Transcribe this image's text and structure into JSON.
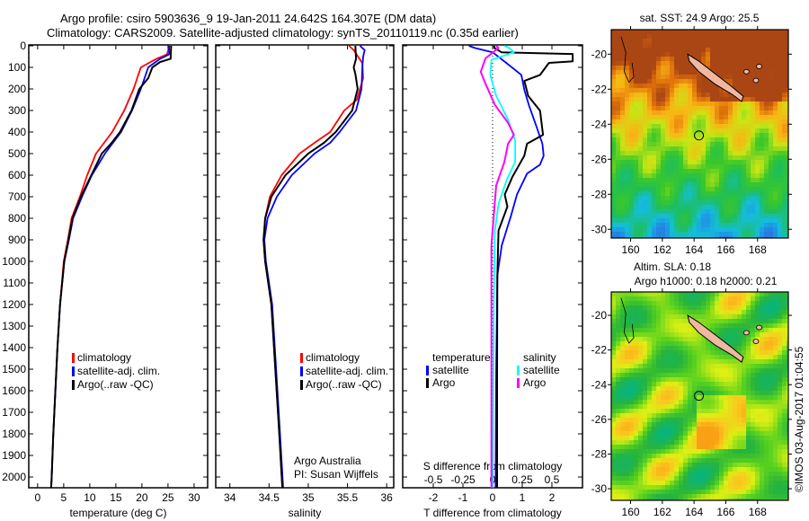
{
  "header": {
    "line1": "Argo profile: csiro 5903636_9 19-Jan-2011 24.642S 164.307E (DM data)",
    "line2": "Climatology: CARS2009. Satellite-adjusted climatology: synTS_20110119.nc (0.35d earlier)"
  },
  "footer": {
    "copyright": "©IMOS 03-Aug-2017 01:04:55"
  },
  "colors": {
    "climatology": "#ff0000",
    "satellite": "#0000ff",
    "argo": "#000000",
    "sal_satellite": "#00ffff",
    "sal_argo": "#ff00ff"
  },
  "chart_data": [
    {
      "type": "line",
      "title": "",
      "xlabel": "temperature (deg C)",
      "ylabel": "",
      "xlim": [
        -1.7,
        32.6
      ],
      "ylim": [
        2050,
        0
      ],
      "xticks": [
        "0",
        "5",
        "10",
        "15",
        "20",
        "25",
        "30"
      ],
      "yticks": [
        "0",
        "100",
        "200",
        "300",
        "400",
        "500",
        "600",
        "700",
        "800",
        "900",
        "1000",
        "1100",
        "1200",
        "1300",
        "1400",
        "1500",
        "1600",
        "1700",
        "1800",
        "1900",
        "2000"
      ],
      "legend": {
        "position": "lower-left",
        "entries": [
          "climatology",
          "satellite-adj. clim.",
          "Argo(..raw -QC)"
        ]
      },
      "series": [
        {
          "name": "climatology",
          "points": [
            [
              0,
              25.3
            ],
            [
              40,
              24.8
            ],
            [
              60,
              22.8
            ],
            [
              100,
              19.8
            ],
            [
              200,
              18.4
            ],
            [
              300,
              16.6
            ],
            [
              400,
              14.3
            ],
            [
              500,
              11.2
            ],
            [
              600,
              9.5
            ],
            [
              700,
              8.1
            ],
            [
              800,
              6.5
            ],
            [
              900,
              5.8
            ],
            [
              1000,
              5.0
            ],
            [
              1200,
              4.3
            ],
            [
              1400,
              3.8
            ],
            [
              1600,
              3.4
            ],
            [
              1800,
              3.0
            ],
            [
              2000,
              2.7
            ],
            [
              2050,
              2.6
            ]
          ]
        },
        {
          "name": "satellite-adj. clim.",
          "points": [
            [
              0,
              25.2
            ],
            [
              40,
              25.2
            ],
            [
              60,
              23.5
            ],
            [
              100,
              21.2
            ],
            [
              200,
              19.8
            ],
            [
              300,
              18.1
            ],
            [
              400,
              16.0
            ],
            [
              500,
              12.9
            ],
            [
              600,
              10.4
            ],
            [
              700,
              8.5
            ],
            [
              800,
              6.8
            ],
            [
              900,
              6.0
            ],
            [
              1000,
              5.1
            ],
            [
              1200,
              4.3
            ],
            [
              1400,
              3.8
            ],
            [
              1600,
              3.4
            ],
            [
              1800,
              3.0
            ],
            [
              2000,
              2.7
            ],
            [
              2050,
              2.6
            ]
          ]
        },
        {
          "name": "Argo(..raw -QC)",
          "points": [
            [
              0,
              25.6
            ],
            [
              60,
              25.5
            ],
            [
              75,
              23.5
            ],
            [
              100,
              22.0
            ],
            [
              150,
              21.2
            ],
            [
              200,
              19.5
            ],
            [
              300,
              18.0
            ],
            [
              400,
              15.8
            ],
            [
              450,
              14.2
            ],
            [
              500,
              12.3
            ],
            [
              600,
              10.3
            ],
            [
              700,
              8.3
            ],
            [
              800,
              6.7
            ],
            [
              900,
              5.9
            ],
            [
              1000,
              5.1
            ],
            [
              1200,
              4.3
            ],
            [
              1400,
              3.8
            ],
            [
              1600,
              3.4
            ],
            [
              1800,
              3.0
            ],
            [
              2000,
              2.7
            ],
            [
              2050,
              2.6
            ]
          ]
        }
      ]
    },
    {
      "type": "line",
      "xlabel": "salinity",
      "xlim": [
        33.82,
        36.09
      ],
      "ylim": [
        2050,
        0
      ],
      "xticks": [
        "34",
        "34.5",
        "35",
        "35.5",
        "36"
      ],
      "legend": {
        "position": "lower-left",
        "entries": [
          "climatology",
          "satellite-adj. clim.",
          "Argo(..raw -QC)"
        ]
      },
      "annotation": [
        "Argo Australia",
        "PI: Susan Wijffels"
      ],
      "series": [
        {
          "name": "climatology",
          "points": [
            [
              0,
              35.52
            ],
            [
              20,
              35.58
            ],
            [
              80,
              35.69
            ],
            [
              150,
              35.7
            ],
            [
              200,
              35.66
            ],
            [
              250,
              35.62
            ],
            [
              300,
              35.46
            ],
            [
              400,
              35.28
            ],
            [
              450,
              35.08
            ],
            [
              500,
              34.89
            ],
            [
              600,
              34.66
            ],
            [
              700,
              34.51
            ],
            [
              800,
              34.45
            ],
            [
              900,
              34.43
            ],
            [
              1000,
              34.45
            ],
            [
              1200,
              34.53
            ],
            [
              1500,
              34.58
            ],
            [
              1800,
              34.63
            ],
            [
              2050,
              34.67
            ]
          ]
        },
        {
          "name": "satellite-adj. clim.",
          "points": [
            [
              0,
              35.66
            ],
            [
              20,
              35.72
            ],
            [
              50,
              35.7
            ],
            [
              100,
              35.69
            ],
            [
              200,
              35.68
            ],
            [
              300,
              35.61
            ],
            [
              400,
              35.4
            ],
            [
              450,
              35.28
            ],
            [
              500,
              35.08
            ],
            [
              600,
              34.79
            ],
            [
              700,
              34.6
            ],
            [
              800,
              34.48
            ],
            [
              900,
              34.44
            ],
            [
              1000,
              34.46
            ],
            [
              1200,
              34.54
            ],
            [
              1500,
              34.59
            ],
            [
              1800,
              34.64
            ],
            [
              2050,
              34.68
            ]
          ]
        },
        {
          "name": "Argo(..raw -QC)",
          "points": [
            [
              0,
              35.6
            ],
            [
              60,
              35.61
            ],
            [
              100,
              35.58
            ],
            [
              130,
              35.6
            ],
            [
              200,
              35.63
            ],
            [
              300,
              35.56
            ],
            [
              400,
              35.35
            ],
            [
              450,
              35.2
            ],
            [
              500,
              35.0
            ],
            [
              600,
              34.71
            ],
            [
              700,
              34.53
            ],
            [
              800,
              34.45
            ],
            [
              900,
              34.43
            ],
            [
              1000,
              34.45
            ],
            [
              1200,
              34.53
            ],
            [
              1500,
              34.58
            ],
            [
              1800,
              34.63
            ],
            [
              2050,
              34.67
            ]
          ]
        }
      ]
    },
    {
      "type": "line",
      "xlabel": "T difference from climatology",
      "x2label": "S difference from climatology",
      "xlim": [
        -3.03,
        3.03
      ],
      "x2lim": [
        -0.758,
        0.758
      ],
      "ylim": [
        2050,
        0
      ],
      "xticks": [
        "-2",
        "-1",
        "0",
        "1",
        "2"
      ],
      "x2ticks": [
        "-0.5",
        "-0.25",
        "0",
        "0.25",
        "0.5"
      ],
      "legend": {
        "position": "lower-center",
        "temperature_title": "temperature",
        "salinity_title": "salinity",
        "entries": [
          "satellite",
          "Argo",
          "satellite",
          "Argo"
        ]
      },
      "series": [
        {
          "name": "temperature satellite",
          "axis": "T",
          "points": [
            [
              0,
              -0.8
            ],
            [
              10,
              -0.6
            ],
            [
              30,
              0.0
            ],
            [
              79,
              0.46
            ],
            [
              135,
              0.97
            ],
            [
              204,
              1.07
            ],
            [
              274,
              1.22
            ],
            [
              371,
              1.47
            ],
            [
              454,
              1.68
            ],
            [
              510,
              1.72
            ],
            [
              551,
              1.6
            ],
            [
              593,
              1.16
            ],
            [
              690,
              0.82
            ],
            [
              788,
              0.62
            ],
            [
              926,
              0.31
            ],
            [
              1065,
              0.16
            ],
            [
              1500,
              0.12
            ],
            [
              2050,
              0.1
            ]
          ]
        },
        {
          "name": "temperature Argo",
          "axis": "T",
          "points": [
            [
              0,
              0.05
            ],
            [
              10,
              0.06
            ],
            [
              30,
              0.3
            ],
            [
              38,
              2.7
            ],
            [
              72,
              2.7
            ],
            [
              79,
              1.9
            ],
            [
              135,
              1.6
            ],
            [
              163,
              1.07
            ],
            [
              232,
              1.2
            ],
            [
              301,
              1.6
            ],
            [
              413,
              1.7
            ],
            [
              454,
              1.16
            ],
            [
              510,
              1.07
            ],
            [
              607,
              0.67
            ],
            [
              690,
              0.41
            ],
            [
              746,
              0.5
            ],
            [
              857,
              0.2
            ],
            [
              1065,
              0.16
            ],
            [
              1500,
              0.15
            ],
            [
              2050,
              0.15
            ]
          ]
        },
        {
          "name": "salinity satellite",
          "axis": "S",
          "points": [
            [
              0,
              0.1
            ],
            [
              10,
              0.14
            ],
            [
              30,
              0.18
            ],
            [
              65,
              -0.01
            ],
            [
              135,
              -0.02
            ],
            [
              232,
              0.03
            ],
            [
              343,
              0.13
            ],
            [
              440,
              0.19
            ],
            [
              538,
              0.19
            ],
            [
              621,
              0.12
            ],
            [
              732,
              0.05
            ],
            [
              857,
              0.02
            ],
            [
              1200,
              0.01
            ],
            [
              2050,
              0.0
            ]
          ]
        },
        {
          "name": "salinity Argo",
          "axis": "S",
          "points": [
            [
              0,
              0.03
            ],
            [
              10,
              0.05
            ],
            [
              58,
              -0.06
            ],
            [
              121,
              -0.1
            ],
            [
              176,
              -0.06
            ],
            [
              274,
              0.02
            ],
            [
              357,
              0.13
            ],
            [
              413,
              0.18
            ],
            [
              454,
              0.13
            ],
            [
              538,
              0.1
            ],
            [
              648,
              0.03
            ],
            [
              788,
              0.01
            ],
            [
              926,
              -0.01
            ],
            [
              1500,
              -0.01
            ],
            [
              2050,
              -0.01
            ]
          ]
        }
      ]
    },
    {
      "type": "heatmap",
      "title": "sat. SST: 24.9 Argo: 25.5",
      "xlim": [
        158.78,
        169.94
      ],
      "ylim": [
        -30.5,
        -18.6
      ],
      "xticks": [
        "160",
        "162",
        "164",
        "166",
        "168"
      ],
      "yticks": [
        "-20",
        "-22",
        "-24",
        "-26",
        "-28",
        "-30"
      ],
      "marker": {
        "lon": 164.307,
        "lat": -24.642
      }
    },
    {
      "type": "heatmap",
      "title": "Altim. SLA: 0.18",
      "subtitle": "Argo h1000: 0.18 h2000: 0.21",
      "xlim": [
        158.78,
        169.94
      ],
      "ylim": [
        -30.67,
        -18.65
      ],
      "xticks": [
        "160",
        "162",
        "164",
        "166",
        "168"
      ],
      "yticks": [
        "-20",
        "-22",
        "-24",
        "-26",
        "-28",
        "-30"
      ],
      "marker": {
        "lon": 164.307,
        "lat": -24.642
      }
    }
  ]
}
